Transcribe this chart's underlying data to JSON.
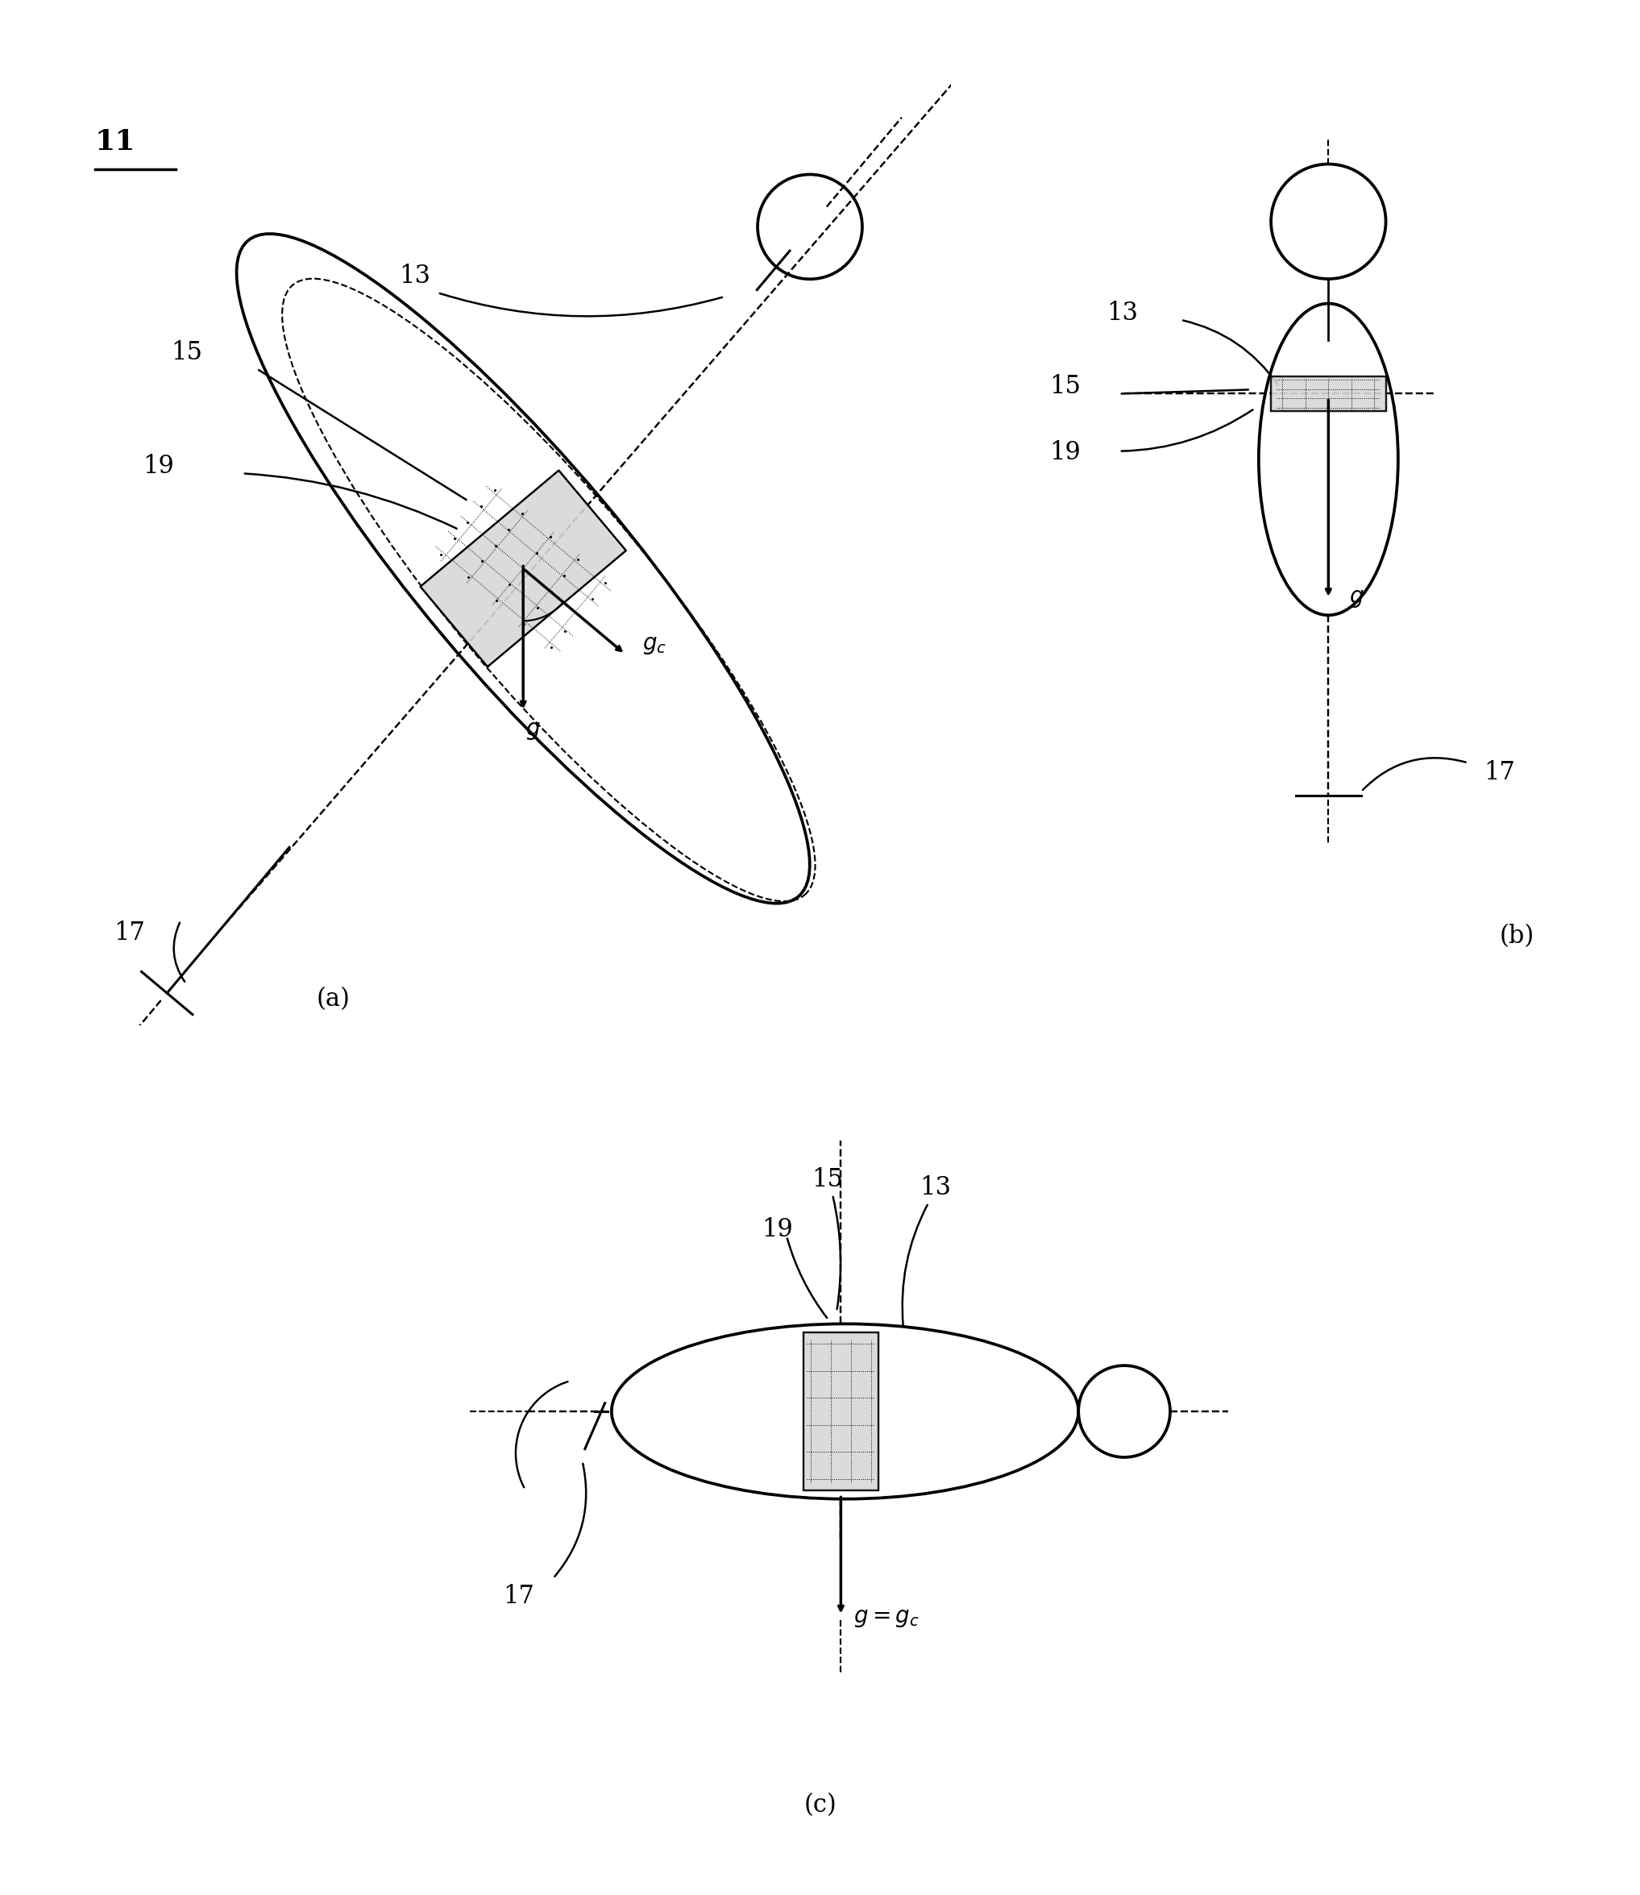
{
  "bg_color": "#ffffff",
  "line_color": "#000000",
  "fig_width": 20.35,
  "fig_height": 23.51,
  "label_11": "11",
  "label_a": "(a)",
  "label_b": "(b)",
  "label_c": "(c)",
  "lw": 2.2
}
